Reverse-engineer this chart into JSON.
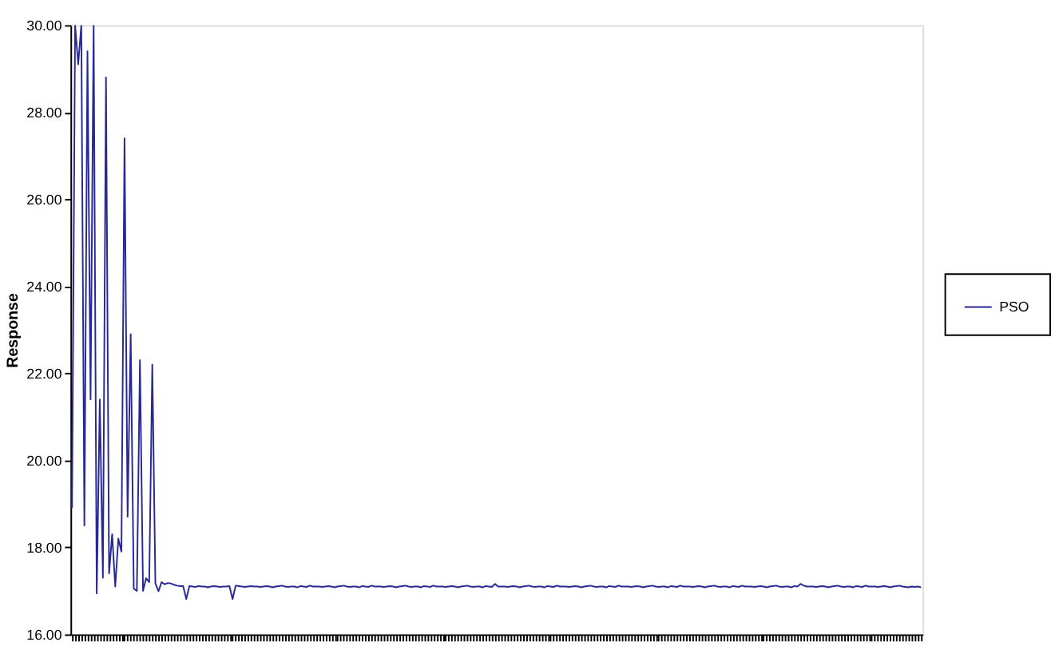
{
  "chart_data": {
    "type": "line",
    "ylabel": "Response",
    "categories": [
      null,
      null,
      null,
      null,
      null,
      null,
      null,
      null,
      null,
      null,
      null,
      null,
      null,
      null,
      null,
      null,
      null,
      null,
      null,
      null,
      null,
      null,
      null,
      null,
      null,
      null,
      null,
      null,
      null,
      null,
      null,
      null,
      null,
      null,
      null,
      null,
      null,
      null,
      null,
      null,
      null,
      null,
      null,
      null,
      null,
      null,
      null,
      null,
      null,
      null,
      null,
      null,
      null,
      null,
      null,
      null,
      null,
      null,
      null,
      null,
      null,
      null,
      null,
      null,
      null,
      null,
      null,
      null,
      null,
      null,
      null,
      null,
      null,
      null,
      null,
      null,
      null,
      null,
      null,
      null,
      null,
      null,
      null,
      null,
      null,
      null,
      null,
      null,
      null,
      null,
      null,
      null,
      null,
      null,
      null,
      null,
      null,
      null,
      null,
      null,
      null,
      null,
      null,
      null,
      null,
      null,
      null,
      null,
      null,
      null,
      null,
      null,
      null,
      null,
      null,
      null,
      null,
      null,
      null,
      null,
      null,
      null,
      null,
      null,
      null,
      null,
      null,
      null,
      null,
      null,
      null,
      null,
      null,
      null,
      null,
      null,
      null,
      null,
      null,
      null,
      null,
      null,
      null,
      null,
      null,
      null,
      null,
      null,
      null,
      null,
      null,
      null,
      null,
      null,
      null,
      null,
      null,
      null,
      null,
      null,
      null,
      null,
      null,
      null,
      null,
      null,
      null,
      null,
      null,
      null,
      null,
      null,
      null,
      null,
      null,
      null,
      null,
      null,
      null,
      null,
      null,
      null,
      null,
      null,
      null,
      null,
      null,
      null,
      null,
      null,
      null,
      null,
      null,
      null,
      null,
      null,
      null,
      null,
      null,
      null,
      null,
      null,
      null,
      null,
      null,
      null,
      null,
      null,
      null,
      null,
      null,
      null,
      null,
      null,
      null,
      null,
      null,
      null,
      null,
      null,
      null,
      null,
      null,
      null,
      null,
      null,
      null,
      null,
      null,
      null,
      null,
      null,
      null,
      null,
      null,
      null,
      null,
      null,
      null,
      null,
      null,
      null,
      null,
      null,
      null,
      null,
      null,
      null,
      null,
      null,
      null,
      null,
      null,
      null,
      null,
      null,
      null,
      null,
      null,
      null,
      null,
      null,
      null,
      null,
      null,
      null,
      null,
      null,
      null,
      null,
      null,
      null,
      null,
      null,
      null,
      null
    ],
    "series": [
      {
        "name": "PSO",
        "color": "#282896",
        "values": [
          18.9,
          30,
          29.1,
          30,
          18.5,
          29.4,
          21.4,
          30,
          16.94,
          21.4,
          17.3,
          28.8,
          17.4,
          18.3,
          17.1,
          18.2,
          17.9,
          27.4,
          18.7,
          22.9,
          17.05,
          17.0,
          22.3,
          17.0,
          17.29,
          17.2,
          22.2,
          17.17,
          16.99,
          17.2,
          17.15,
          17.18,
          17.17,
          17.14,
          17.12,
          17.11,
          17.11,
          16.81,
          17.11,
          17.1,
          17.09,
          17.11,
          17.1,
          17.1,
          17.08,
          17.1,
          17.11,
          17.1,
          17.09,
          17.1,
          17.1,
          17.11,
          16.81,
          17.12,
          17.11,
          17.1,
          17.09,
          17.1,
          17.11,
          17.1,
          17.1,
          17.09,
          17.1,
          17.11,
          17.1,
          17.08,
          17.1,
          17.11,
          17.12,
          17.1,
          17.09,
          17.1,
          17.1,
          17.08,
          17.11,
          17.1,
          17.09,
          17.12,
          17.1,
          17.1,
          17.1,
          17.09,
          17.1,
          17.11,
          17.1,
          17.08,
          17.1,
          17.11,
          17.12,
          17.1,
          17.09,
          17.1,
          17.1,
          17.08,
          17.11,
          17.1,
          17.09,
          17.12,
          17.1,
          17.1,
          17.1,
          17.09,
          17.1,
          17.11,
          17.1,
          17.08,
          17.1,
          17.11,
          17.12,
          17.1,
          17.09,
          17.1,
          17.1,
          17.08,
          17.11,
          17.1,
          17.09,
          17.12,
          17.1,
          17.1,
          17.1,
          17.09,
          17.1,
          17.11,
          17.1,
          17.08,
          17.1,
          17.11,
          17.12,
          17.1,
          17.09,
          17.1,
          17.1,
          17.08,
          17.11,
          17.1,
          17.09,
          17.16,
          17.1,
          17.1,
          17.1,
          17.09,
          17.1,
          17.11,
          17.1,
          17.08,
          17.1,
          17.11,
          17.12,
          17.1,
          17.09,
          17.1,
          17.1,
          17.08,
          17.11,
          17.1,
          17.09,
          17.12,
          17.1,
          17.1,
          17.1,
          17.09,
          17.1,
          17.11,
          17.1,
          17.08,
          17.1,
          17.11,
          17.12,
          17.1,
          17.09,
          17.1,
          17.1,
          17.08,
          17.11,
          17.1,
          17.09,
          17.12,
          17.1,
          17.1,
          17.1,
          17.09,
          17.1,
          17.11,
          17.1,
          17.08,
          17.1,
          17.11,
          17.12,
          17.1,
          17.09,
          17.1,
          17.1,
          17.08,
          17.11,
          17.1,
          17.09,
          17.12,
          17.1,
          17.1,
          17.1,
          17.09,
          17.1,
          17.11,
          17.1,
          17.08,
          17.1,
          17.11,
          17.12,
          17.1,
          17.09,
          17.1,
          17.1,
          17.08,
          17.11,
          17.1,
          17.09,
          17.12,
          17.1,
          17.1,
          17.1,
          17.09,
          17.1,
          17.11,
          17.1,
          17.08,
          17.1,
          17.11,
          17.12,
          17.1,
          17.09,
          17.1,
          17.1,
          17.08,
          17.11,
          17.1,
          17.16,
          17.12,
          17.1,
          17.1,
          17.1,
          17.09,
          17.1,
          17.11,
          17.1,
          17.08,
          17.1,
          17.11,
          17.12,
          17.1,
          17.09,
          17.1,
          17.1,
          17.08,
          17.11,
          17.1,
          17.09,
          17.12,
          17.1,
          17.1,
          17.1,
          17.09,
          17.1,
          17.11,
          17.1,
          17.08,
          17.1,
          17.11,
          17.12,
          17.1,
          17.09,
          17.08,
          17.1,
          17.09,
          17.1,
          17.08
        ]
      }
    ],
    "ylim": [
      16,
      30
    ],
    "yticks": [
      {
        "value": 16,
        "label": "16.00"
      },
      {
        "value": 18,
        "label": "18.00"
      },
      {
        "value": 20,
        "label": "20.00"
      },
      {
        "value": 22,
        "label": "22.00"
      },
      {
        "value": 24,
        "label": "24.00"
      },
      {
        "value": 26,
        "label": "26.00"
      },
      {
        "value": 28,
        "label": "28.00"
      },
      {
        "value": 30,
        "label": "30.00"
      }
    ],
    "grid": false,
    "legend": "right",
    "line_style": "solid",
    "marker": "none"
  }
}
